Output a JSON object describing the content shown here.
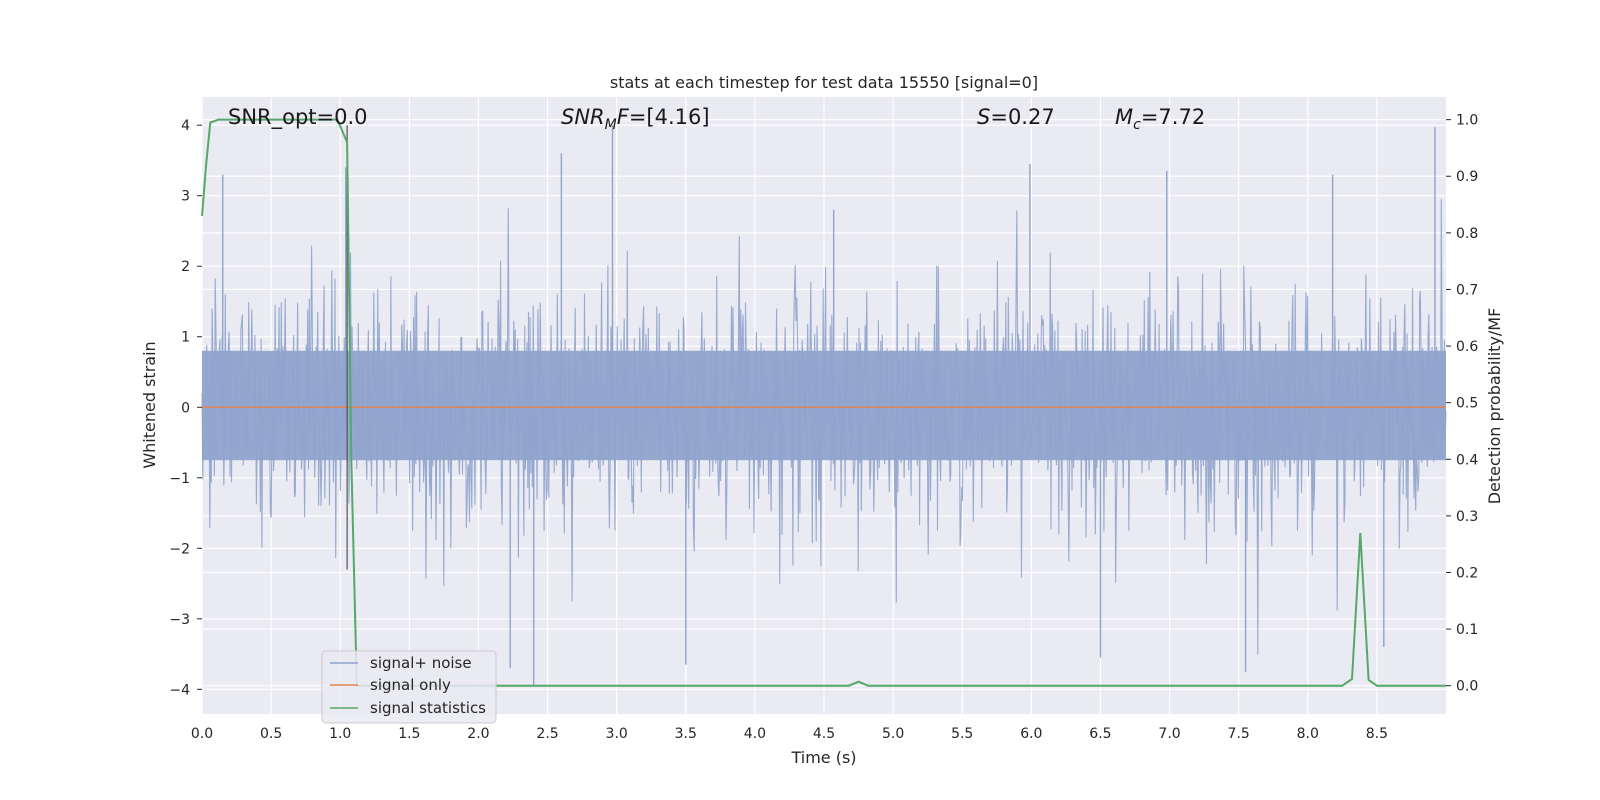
{
  "chart_data": {
    "type": "line",
    "title": "stats at each timestep for test data 15550 [signal=0]",
    "xlabel": "Time (s)",
    "ylabel": "Whitened strain",
    "ylabel_right": "Detection probability/MF",
    "xlim": [
      0.0,
      9.0
    ],
    "ylim": [
      -4.35,
      4.4
    ],
    "ylim_right": [
      -0.05,
      1.04
    ],
    "grid": true,
    "legend_position": "lower-left",
    "x_ticks": [
      "0.0",
      "0.5",
      "1.0",
      "1.5",
      "2.0",
      "2.5",
      "3.0",
      "3.5",
      "4.0",
      "4.5",
      "5.0",
      "5.5",
      "6.0",
      "6.5",
      "7.0",
      "7.5",
      "8.0",
      "8.5"
    ],
    "x_tick_values": [
      0.0,
      0.5,
      1.0,
      1.5,
      2.0,
      2.5,
      3.0,
      3.5,
      4.0,
      4.5,
      5.0,
      5.5,
      6.0,
      6.5,
      7.0,
      7.5,
      8.0,
      8.5
    ],
    "y_ticks": [
      "−4",
      "−3",
      "−2",
      "−1",
      "0",
      "1",
      "2",
      "3",
      "4"
    ],
    "y_tick_values": [
      -4,
      -3,
      -2,
      -1,
      0,
      1,
      2,
      3,
      4
    ],
    "y_right_ticks": [
      "0.0",
      "0.1",
      "0.2",
      "0.3",
      "0.4",
      "0.5",
      "0.6",
      "0.7",
      "0.8",
      "0.9",
      "1.0"
    ],
    "y_right_tick_values": [
      0.0,
      0.1,
      0.2,
      0.3,
      0.4,
      0.5,
      0.6,
      0.7,
      0.8,
      0.9,
      1.0
    ],
    "annotations": {
      "snr_opt": "SNR_opt=0.0",
      "snr_mf": "=[4.16]",
      "snr_mf_base": "SNR",
      "snr_mf_sub": "M",
      "snr_mf_post": "F",
      "s_label": "S",
      "s_value": "=0.27",
      "mc_label": "M",
      "mc_sub": "c",
      "mc_value": "=7.72"
    },
    "series": [
      {
        "name": "signal+ noise",
        "color": "#8fa3cc",
        "axis": "left",
        "noise_band": {
          "sigma": 0.85,
          "peak_samples": 1600,
          "x_start": 0.0,
          "x_end": 9.0
        },
        "spikes": [
          {
            "x": 1.04,
            "y": 3.4
          },
          {
            "x": 2.97,
            "y": 4.0
          },
          {
            "x": 8.92,
            "y": 3.97
          },
          {
            "x": 2.6,
            "y": 3.6
          },
          {
            "x": 5.99,
            "y": 3.45
          },
          {
            "x": 6.98,
            "y": 3.35
          },
          {
            "x": 8.18,
            "y": 3.3
          },
          {
            "x": 2.4,
            "y": -3.95
          },
          {
            "x": 2.23,
            "y": -3.7
          },
          {
            "x": 3.5,
            "y": -3.65
          },
          {
            "x": 6.5,
            "y": -3.55
          },
          {
            "x": 7.55,
            "y": -3.75
          },
          {
            "x": 8.55,
            "y": -3.4
          },
          {
            "x": 0.15,
            "y": 3.3
          },
          {
            "x": 4.57,
            "y": 2.8
          }
        ]
      },
      {
        "name": "signal only",
        "color": "#dd8452",
        "axis": "left",
        "x": [
          0.0,
          9.0
        ],
        "y": [
          0.0,
          0.0
        ]
      },
      {
        "name": "signal statistics",
        "color": "#55a868",
        "axis": "right",
        "x": [
          0.0,
          0.03,
          0.06,
          0.12,
          0.2,
          0.4,
          0.6,
          0.8,
          0.98,
          1.05,
          1.08,
          1.12,
          1.16,
          1.2,
          2.0,
          3.0,
          4.0,
          4.68,
          4.75,
          4.82,
          5.0,
          6.0,
          7.0,
          8.0,
          8.25,
          8.32,
          8.38,
          8.44,
          8.5,
          9.0
        ],
        "y": [
          0.83,
          0.92,
          0.995,
          1.0,
          1.0,
          1.0,
          1.0,
          1.0,
          1.0,
          0.96,
          0.4,
          0.0,
          0.0,
          0.0,
          0.0,
          0.0,
          0.0,
          0.0,
          0.007,
          0.0,
          0.0,
          0.0,
          0.0,
          0.0,
          0.0,
          0.012,
          0.27,
          0.01,
          0.0,
          0.0
        ]
      }
    ],
    "marker_line": {
      "x": 1.05,
      "color": "#555555"
    }
  },
  "legend": {
    "items": [
      {
        "label": "signal+ noise",
        "color": "#8fa3cc"
      },
      {
        "label": "signal only",
        "color": "#dd8452"
      },
      {
        "label": "signal statistics",
        "color": "#55a868"
      }
    ]
  },
  "colors": {
    "plot_background": "#eaeaf2",
    "grid": "#ffffff",
    "text": "#262626"
  }
}
